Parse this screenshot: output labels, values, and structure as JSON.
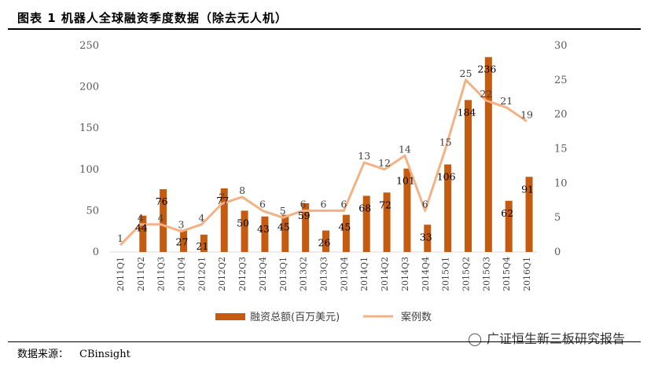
{
  "header": {
    "title": "图表 1 机器人全球融资季度数据（除去无人机）"
  },
  "footer": {
    "source_label": "数据来源：",
    "source_value": "CBinsight"
  },
  "watermark": {
    "text": "广证恒生新三板研究报告"
  },
  "colors": {
    "bar": "#C55A11",
    "line": "#F4B183",
    "axis": "#D9D9D9"
  },
  "chart_data": {
    "type": "bar",
    "title": "",
    "categories": [
      "2011Q1",
      "2011Q2",
      "2011Q3",
      "2011Q4",
      "2012Q1",
      "2012Q2",
      "2012Q3",
      "2012Q4",
      "2013Q1",
      "2013Q2",
      "2013Q3",
      "2013Q4",
      "2014Q1",
      "2014Q2",
      "2014Q3",
      "2014Q4",
      "2015Q1",
      "2015Q2",
      "2015Q3",
      "2015Q4",
      "2016Q1"
    ],
    "series": [
      {
        "name": "融资总额(百万美元)",
        "type": "bar",
        "axis": "left",
        "values": [
          null,
          44,
          76,
          27,
          21,
          77,
          50,
          43,
          45,
          59,
          26,
          45,
          68,
          72,
          101,
          33,
          106,
          184,
          236,
          62,
          91
        ],
        "labels": [
          "",
          "44",
          "76",
          "27",
          "21",
          "77",
          "50",
          "43",
          "45",
          "59",
          "26",
          "45",
          "68",
          "72",
          "101",
          "33",
          "106",
          "184",
          "236",
          "62",
          "91"
        ]
      },
      {
        "name": "案例数",
        "type": "line",
        "axis": "right",
        "values": [
          1,
          4,
          4,
          3,
          4,
          7,
          8,
          6,
          5,
          6,
          6,
          6,
          13,
          12,
          14,
          6,
          15,
          25,
          22,
          21,
          19
        ],
        "labels": [
          "1",
          "4",
          "4",
          "3",
          "4",
          "7",
          "8",
          "6",
          "5",
          "6",
          "6",
          "6",
          "13",
          "12",
          "14",
          "6",
          "15",
          "25",
          "22",
          "21",
          "19"
        ]
      }
    ],
    "ylim": [
      0,
      250
    ],
    "y2lim": [
      0,
      30
    ],
    "yticks": [
      "0",
      "50",
      "100",
      "150",
      "200",
      "250"
    ],
    "y2ticks": [
      "0",
      "5",
      "10",
      "15",
      "20",
      "25",
      "30"
    ],
    "legend_position": "bottom",
    "grid": false
  }
}
